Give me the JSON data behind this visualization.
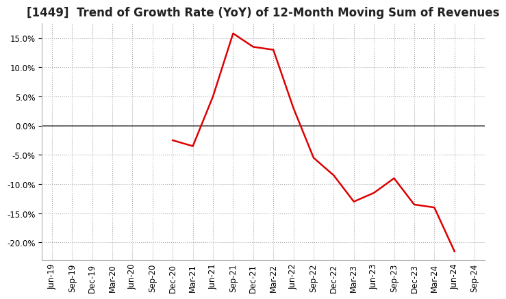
{
  "title": "[1449]  Trend of Growth Rate (YoY) of 12-Month Moving Sum of Revenues",
  "x_labels": [
    "Jun-19",
    "Sep-19",
    "Dec-19",
    "Mar-20",
    "Jun-20",
    "Sep-20",
    "Dec-20",
    "Mar-21",
    "Jun-21",
    "Sep-21",
    "Dec-21",
    "Mar-22",
    "Jun-22",
    "Sep-22",
    "Dec-22",
    "Mar-23",
    "Jun-23",
    "Sep-23",
    "Dec-23",
    "Mar-24",
    "Jun-24",
    "Sep-24"
  ],
  "y_values": [
    null,
    null,
    null,
    null,
    null,
    null,
    -2.5,
    -3.5,
    5.0,
    15.8,
    13.5,
    13.0,
    3.0,
    -5.5,
    -8.5,
    -13.0,
    -11.5,
    -9.0,
    -13.5,
    -14.0,
    -21.5,
    null
  ],
  "ylim": [
    -23,
    17.5
  ],
  "yticks": [
    -20.0,
    -15.0,
    -10.0,
    -5.0,
    0.0,
    5.0,
    10.0,
    15.0
  ],
  "line_color": "#dd0000",
  "background_color": "#ffffff",
  "grid_color": "#aaaaaa",
  "zero_line_color": "#555555",
  "title_fontsize": 12,
  "tick_fontsize": 8.5
}
